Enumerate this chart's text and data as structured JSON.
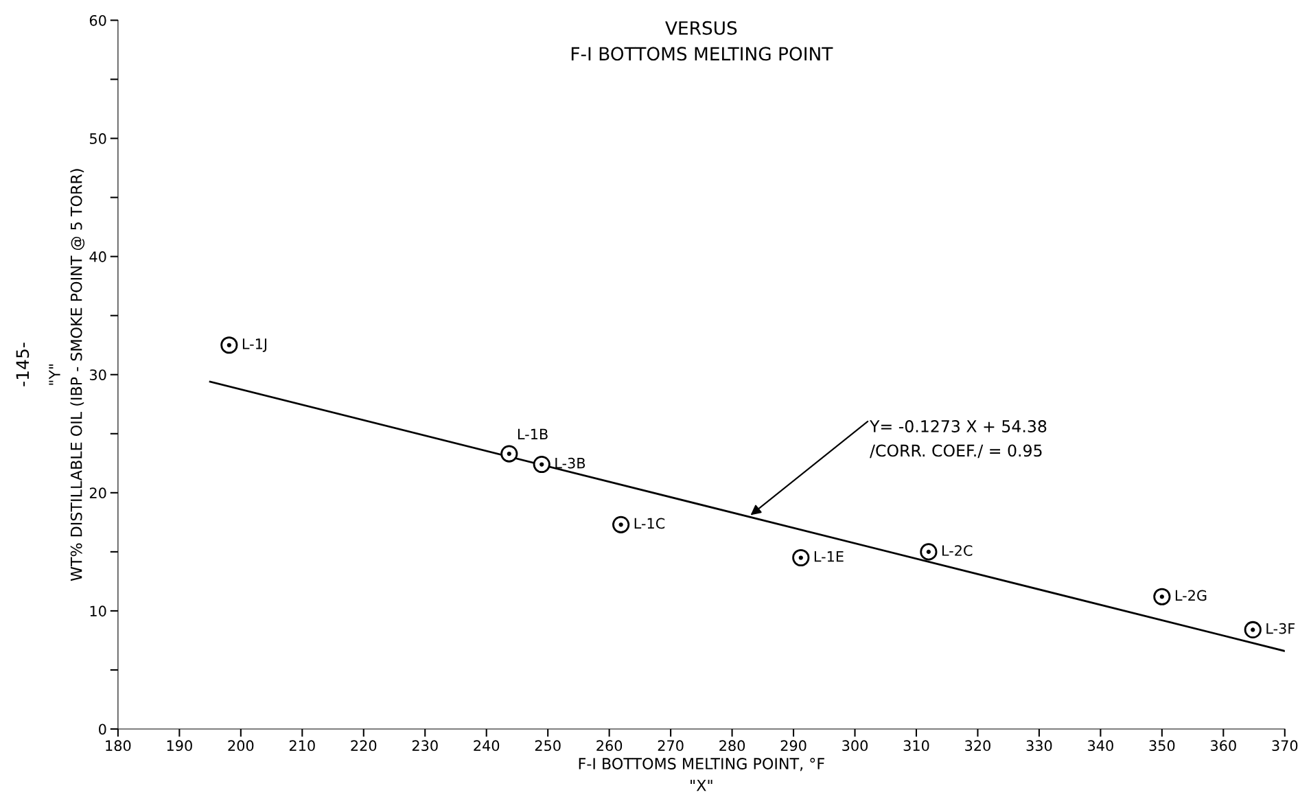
{
  "chart_data": {
    "type": "scatter",
    "title": "VERSUS\nF-I BOTTOMS MELTING POINT",
    "xlabel": "F-I BOTTOMS MELTING POINT, °F\n\"X\"",
    "ylabel": "\"Y\"\nWT% DISTILLABLE OIL (IBP - SMOKE POINT @ 5 TORR)",
    "xlim": [
      180,
      370
    ],
    "ylim": [
      0,
      60
    ],
    "xticks": [
      180,
      190,
      200,
      210,
      220,
      230,
      240,
      250,
      260,
      270,
      280,
      290,
      300,
      310,
      320,
      330,
      340,
      350,
      360,
      370
    ],
    "yticks": [
      0,
      {
        "value": 5,
        "label": null
      },
      10,
      {
        "value": 15,
        "label": null
      },
      20,
      {
        "value": 25,
        "label": null
      },
      30,
      {
        "value": 35,
        "label": null
      },
      40,
      {
        "value": 45,
        "label": null
      },
      50,
      {
        "value": 55,
        "label": null
      },
      60
    ],
    "grid": false,
    "legend": false,
    "series": [
      {
        "color": "#000000",
        "marker": "circle",
        "x": [
          198.1,
          243.7,
          249,
          261.9,
          291.2,
          312,
          350,
          364.8
        ],
        "values": [
          32.5,
          23.3,
          22.4,
          17.3,
          14.5,
          15.0,
          11.2,
          8.4
        ],
        "value_labels": [
          "L-1J",
          "L-1B",
          "L-3B",
          "L-1C",
          "L-1E",
          "L-2C",
          "L-2G",
          "L-3F"
        ]
      },
      {
        "type": "line",
        "color": "#000000",
        "marker": "none",
        "line_style": "solid",
        "x": [
          195,
          370
        ],
        "values": [
          29.4,
          6.6
        ]
      }
    ],
    "annotations": [
      {
        "text": "Y= -0.1273 X + 54.38\n/CORR. COEF./ = 0.95",
        "x": 283,
        "y": 18.1
      },
      "-145-"
    ]
  }
}
